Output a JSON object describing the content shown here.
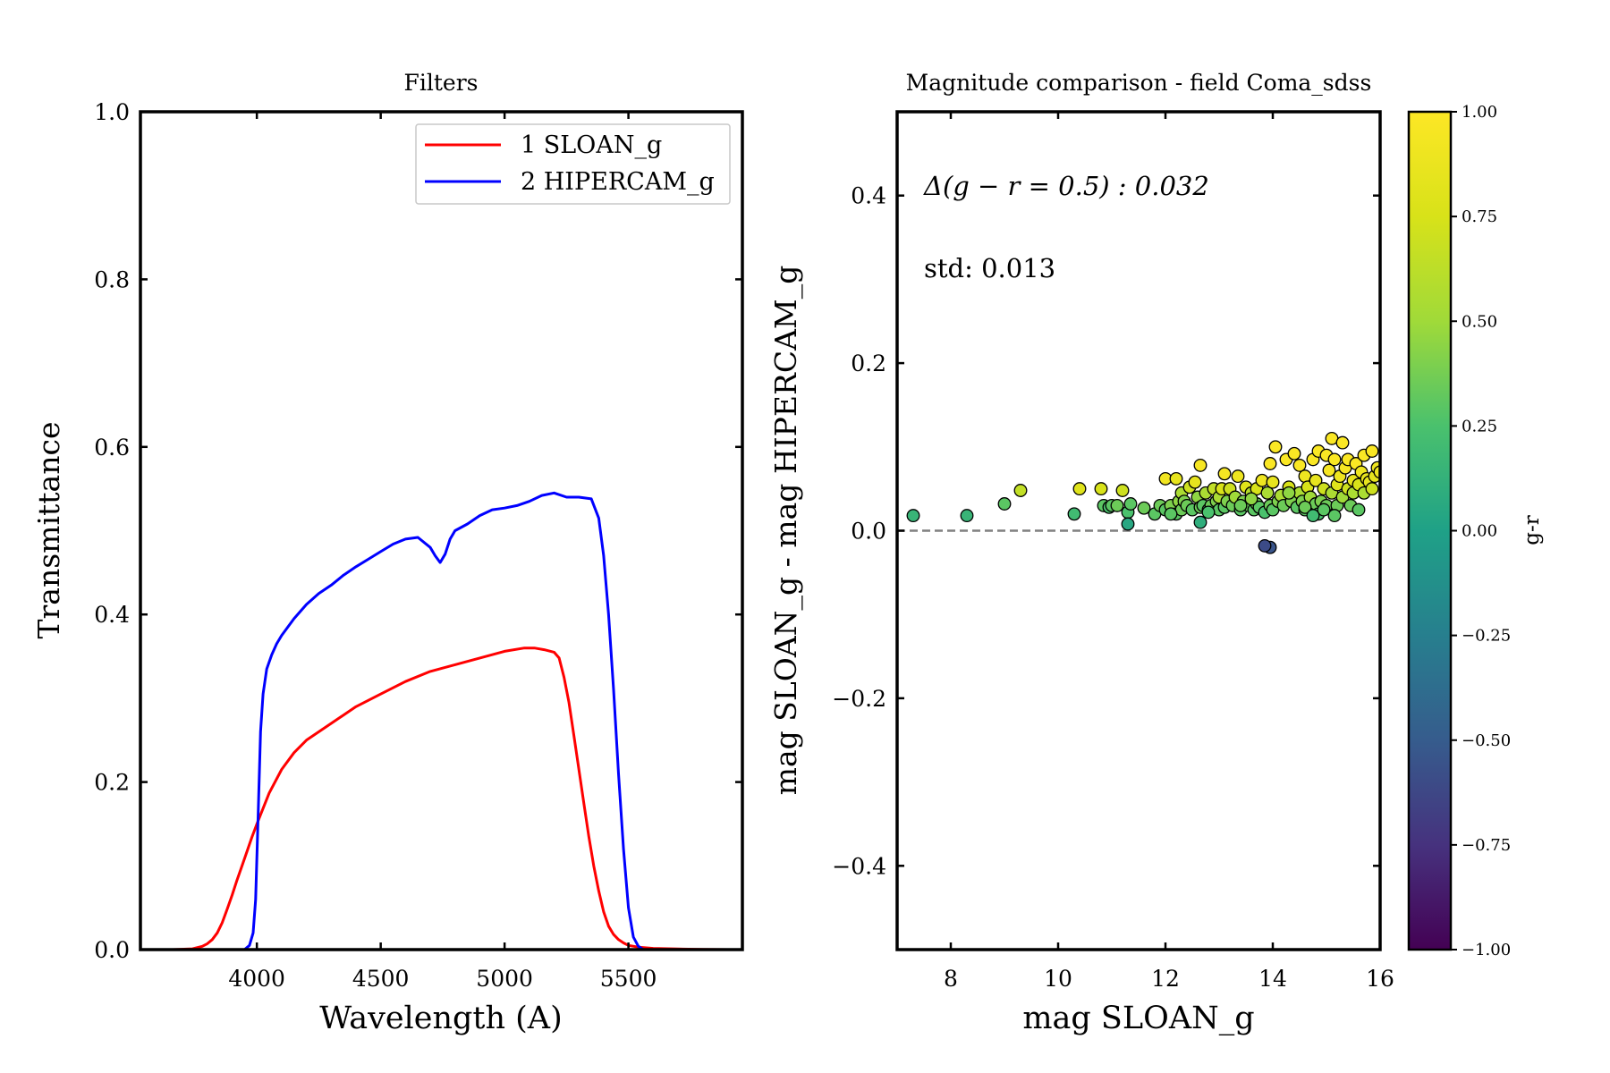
{
  "chart_data": [
    {
      "type": "line",
      "title": "Filters",
      "xlabel": "Wavelength (A)",
      "ylabel": "Transmittance",
      "xlim": [
        3530,
        5960
      ],
      "ylim": [
        0,
        1.0
      ],
      "xticks": [
        4000,
        4500,
        5000,
        5500
      ],
      "yticks": [
        0.0,
        0.2,
        0.4,
        0.6,
        0.8,
        1.0
      ],
      "ytick_labels": [
        "0.0",
        "0.2",
        "0.4",
        "0.6",
        "0.8",
        "1.0"
      ],
      "legend": {
        "placement": "top-right"
      },
      "series": [
        {
          "name": "1 SLOAN_g",
          "color": "#ff0000",
          "x": [
            3660,
            3740,
            3780,
            3800,
            3820,
            3840,
            3860,
            3880,
            3900,
            3920,
            3940,
            3960,
            3980,
            4000,
            4050,
            4100,
            4150,
            4200,
            4300,
            4400,
            4500,
            4600,
            4700,
            4800,
            4900,
            5000,
            5080,
            5120,
            5160,
            5200,
            5220,
            5240,
            5260,
            5280,
            5300,
            5320,
            5340,
            5360,
            5380,
            5400,
            5420,
            5440,
            5460,
            5480,
            5500,
            5540,
            5600,
            5700,
            5800,
            5900
          ],
          "y": [
            0,
            0.001,
            0.004,
            0.007,
            0.012,
            0.02,
            0.032,
            0.048,
            0.065,
            0.083,
            0.1,
            0.117,
            0.134,
            0.15,
            0.187,
            0.215,
            0.235,
            0.25,
            0.27,
            0.29,
            0.305,
            0.32,
            0.332,
            0.34,
            0.348,
            0.356,
            0.36,
            0.36,
            0.358,
            0.355,
            0.348,
            0.325,
            0.295,
            0.255,
            0.215,
            0.175,
            0.135,
            0.1,
            0.07,
            0.045,
            0.028,
            0.018,
            0.012,
            0.008,
            0.005,
            0.003,
            0.0015,
            0.0007,
            0.0003,
            0
          ]
        },
        {
          "name": "2 HIPERCAM_g",
          "color": "#0000ff",
          "x": [
            3950,
            3970,
            3985,
            3995,
            4005,
            4015,
            4025,
            4040,
            4060,
            4080,
            4100,
            4150,
            4200,
            4250,
            4300,
            4350,
            4400,
            4450,
            4500,
            4550,
            4600,
            4650,
            4700,
            4720,
            4740,
            4760,
            4780,
            4800,
            4850,
            4900,
            4950,
            5000,
            5050,
            5100,
            5150,
            5200,
            5250,
            5300,
            5350,
            5380,
            5400,
            5420,
            5440,
            5460,
            5480,
            5500,
            5520,
            5540,
            5560
          ],
          "y": [
            0,
            0.005,
            0.02,
            0.06,
            0.16,
            0.26,
            0.305,
            0.335,
            0.352,
            0.365,
            0.375,
            0.395,
            0.412,
            0.425,
            0.435,
            0.447,
            0.457,
            0.466,
            0.475,
            0.484,
            0.49,
            0.492,
            0.48,
            0.47,
            0.462,
            0.472,
            0.49,
            0.5,
            0.508,
            0.518,
            0.525,
            0.527,
            0.53,
            0.535,
            0.542,
            0.545,
            0.54,
            0.54,
            0.538,
            0.515,
            0.47,
            0.4,
            0.31,
            0.21,
            0.12,
            0.05,
            0.015,
            0.004,
            0
          ]
        }
      ]
    },
    {
      "type": "scatter",
      "title": "Magnitude comparison - field Coma_sdss",
      "xlabel": "mag SLOAN_g",
      "ylabel": "mag SLOAN_g - mag HIPERCAM_g",
      "xlim": [
        7.0,
        16.0
      ],
      "ylim": [
        -0.5,
        0.5
      ],
      "xticks": [
        8,
        10,
        12,
        14,
        16
      ],
      "yticks": [
        -0.4,
        -0.2,
        0.0,
        0.2,
        0.4
      ],
      "ytick_labels": [
        "−0.4",
        "−0.2",
        "0.0",
        "0.2",
        "0.4"
      ],
      "reference_line": {
        "y": 0.0,
        "style": "dashed",
        "color": "#808080"
      },
      "annotations": [
        "Δ(g − r = 0.5) : 0.032",
        "std: 0.013"
      ],
      "annotation_color": "#0000ff",
      "colorbar": {
        "label": "g-r",
        "range": [
          -1.0,
          1.0
        ],
        "colormap": "viridis",
        "ticks": [
          1.0,
          0.75,
          0.5,
          0.25,
          0.0,
          -0.25,
          -0.5,
          -0.75,
          -1.0
        ],
        "tick_labels": [
          "1.00",
          "0.75",
          "0.50",
          "0.25",
          "0.00",
          "−0.25",
          "−0.50",
          "−0.75",
          "−1.00"
        ]
      },
      "points": {
        "x": [
          7.3,
          8.3,
          9.0,
          9.3,
          10.3,
          10.4,
          10.8,
          10.85,
          10.95,
          11.0,
          11.1,
          11.2,
          11.3,
          11.35,
          11.6,
          11.8,
          11.9,
          12.0,
          12.0,
          12.1,
          12.2,
          12.2,
          12.25,
          12.3,
          12.3,
          12.35,
          12.4,
          12.45,
          12.5,
          12.55,
          12.6,
          12.65,
          12.65,
          12.7,
          12.75,
          12.8,
          12.85,
          12.9,
          12.95,
          13.0,
          13.0,
          13.05,
          13.1,
          13.1,
          13.15,
          13.2,
          13.25,
          13.3,
          13.35,
          13.4,
          13.45,
          13.5,
          13.55,
          13.6,
          13.65,
          13.7,
          13.7,
          13.75,
          13.8,
          13.85,
          13.9,
          13.95,
          13.95,
          14.0,
          14.0,
          14.05,
          14.1,
          14.15,
          14.2,
          14.25,
          14.3,
          14.35,
          14.4,
          14.45,
          14.5,
          14.5,
          14.55,
          14.6,
          14.6,
          14.65,
          14.7,
          14.75,
          14.8,
          14.8,
          14.85,
          14.9,
          14.95,
          15.0,
          15.0,
          15.05,
          15.1,
          15.1,
          15.15,
          15.2,
          15.2,
          15.25,
          15.3,
          15.3,
          15.35,
          15.4,
          15.4,
          15.45,
          15.5,
          15.5,
          15.55,
          15.6,
          15.65,
          15.7,
          15.7,
          15.75,
          15.8,
          15.85,
          15.9,
          15.95,
          16.0,
          13.95,
          13.85,
          14.3,
          14.6,
          15.15,
          14.85,
          14.95,
          13.4,
          13.6,
          12.8,
          12.1,
          14.75,
          15.6,
          15.85,
          12.65,
          11.3
        ],
        "y": [
          0.018,
          0.018,
          0.032,
          0.048,
          0.02,
          0.05,
          0.05,
          0.03,
          0.028,
          0.03,
          0.03,
          0.048,
          0.022,
          0.032,
          0.027,
          0.02,
          0.03,
          0.062,
          0.025,
          0.03,
          0.062,
          0.02,
          0.035,
          0.045,
          0.025,
          0.035,
          0.03,
          0.052,
          0.025,
          0.058,
          0.04,
          0.078,
          0.028,
          0.03,
          0.045,
          0.025,
          0.03,
          0.05,
          0.035,
          0.04,
          0.025,
          0.05,
          0.028,
          0.068,
          0.035,
          0.05,
          0.03,
          0.04,
          0.065,
          0.025,
          0.035,
          0.052,
          0.03,
          0.045,
          0.025,
          0.032,
          0.05,
          0.028,
          0.06,
          0.022,
          0.045,
          0.08,
          0.03,
          0.058,
          0.025,
          0.1,
          0.035,
          0.042,
          0.03,
          0.085,
          0.052,
          0.035,
          0.092,
          0.028,
          0.078,
          0.045,
          0.035,
          0.065,
          0.025,
          0.052,
          0.04,
          0.085,
          0.032,
          0.06,
          0.095,
          0.035,
          0.05,
          0.09,
          0.03,
          0.072,
          0.11,
          0.045,
          0.085,
          0.03,
          0.055,
          0.065,
          0.105,
          0.04,
          0.075,
          0.05,
          0.085,
          0.03,
          0.06,
          0.045,
          0.08,
          0.055,
          0.07,
          0.045,
          0.09,
          0.062,
          0.058,
          0.095,
          0.065,
          0.075,
          0.07,
          -0.02,
          -0.018,
          0.045,
          0.028,
          0.018,
          0.02,
          0.025,
          0.03,
          0.038,
          0.022,
          0.02,
          0.018,
          0.025,
          0.05,
          0.01,
          0.008
        ],
        "c": [
          0.15,
          0.15,
          0.3,
          0.65,
          0.2,
          0.8,
          0.75,
          0.3,
          0.25,
          0.3,
          0.35,
          0.7,
          0.25,
          0.3,
          0.35,
          0.3,
          0.35,
          0.92,
          0.3,
          0.4,
          0.85,
          0.3,
          0.45,
          0.55,
          0.35,
          0.4,
          0.35,
          0.7,
          0.3,
          0.85,
          0.45,
          0.95,
          0.35,
          0.3,
          0.55,
          0.3,
          0.35,
          0.65,
          0.4,
          0.55,
          0.3,
          0.75,
          0.3,
          0.95,
          0.4,
          0.7,
          0.35,
          0.5,
          0.9,
          0.3,
          0.4,
          0.8,
          0.35,
          0.6,
          0.3,
          0.35,
          0.75,
          0.3,
          0.9,
          0.25,
          0.55,
          0.98,
          0.35,
          0.85,
          0.3,
          0.98,
          0.4,
          0.55,
          0.35,
          0.98,
          0.75,
          0.4,
          0.98,
          0.3,
          0.98,
          0.55,
          0.4,
          0.9,
          0.3,
          0.75,
          0.5,
          0.98,
          0.35,
          0.85,
          0.98,
          0.4,
          0.7,
          0.98,
          0.35,
          0.95,
          0.98,
          0.55,
          0.98,
          0.35,
          0.8,
          0.9,
          0.98,
          0.5,
          0.95,
          0.7,
          0.98,
          0.35,
          0.85,
          0.55,
          0.98,
          0.75,
          0.9,
          0.55,
          0.98,
          0.85,
          0.85,
          0.98,
          0.85,
          0.9,
          0.9,
          -0.55,
          -0.6,
          0.45,
          0.35,
          0.3,
          0.25,
          0.3,
          0.35,
          0.45,
          0.25,
          0.3,
          0.2,
          0.3,
          0.7,
          0.1,
          0.05
        ]
      }
    }
  ]
}
